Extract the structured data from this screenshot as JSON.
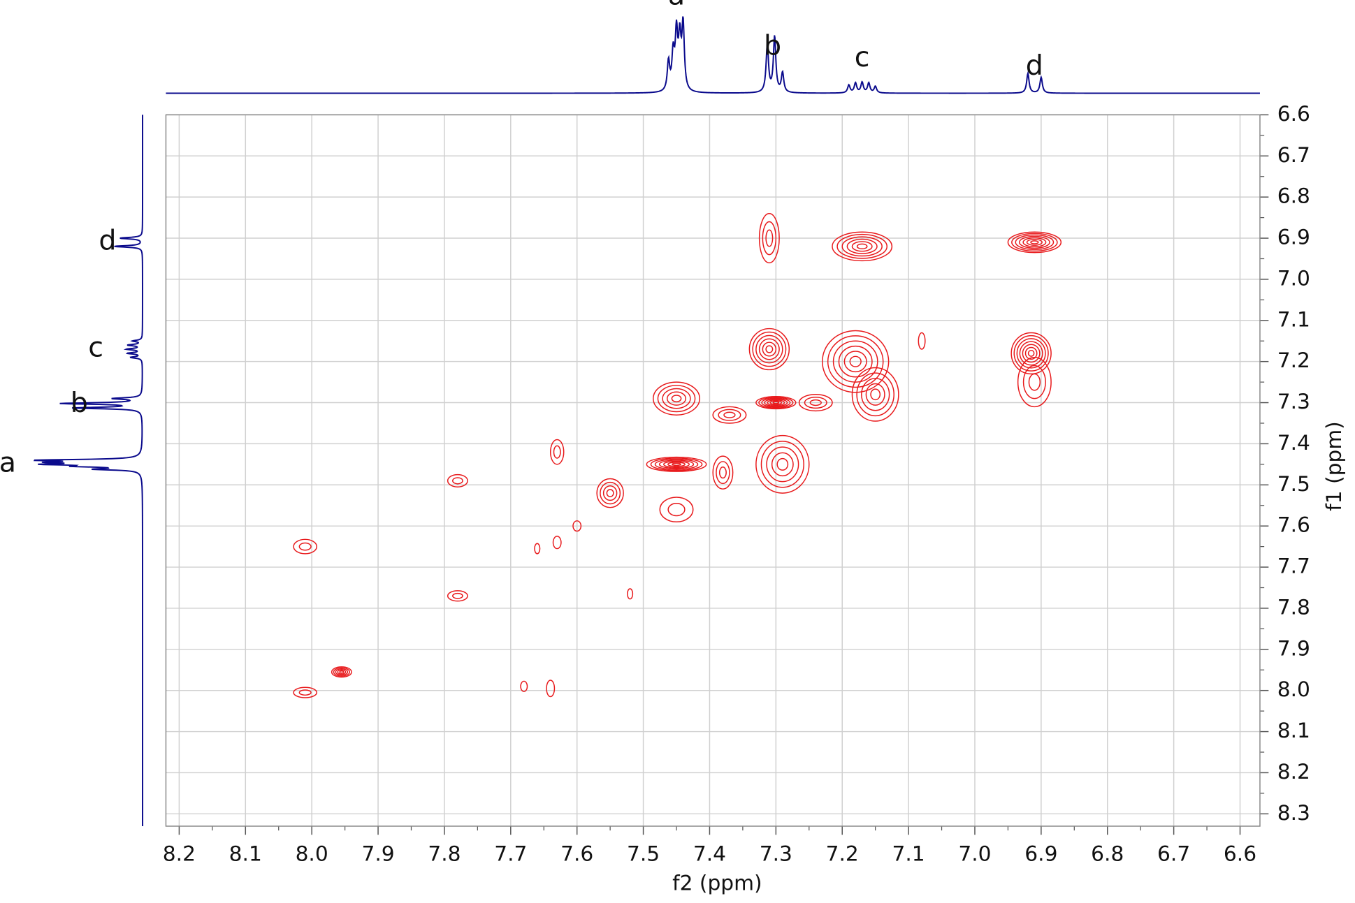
{
  "chart_data": {
    "type": "contour",
    "x_label": "f2 (ppm)",
    "y_label": "f1 (ppm)",
    "xlim": [
      8.22,
      6.57
    ],
    "ylim": [
      6.6,
      8.33
    ],
    "xticks": [
      8.2,
      8.1,
      {
        "value": 8,
        "label": "8.0"
      },
      7.9,
      7.8,
      7.7,
      7.6,
      7.5,
      7.4,
      7.3,
      7.2,
      7.1,
      {
        "value": 7,
        "label": "7.0"
      },
      6.9,
      6.8,
      6.7,
      6.6
    ],
    "yticks": [
      6.6,
      6.7,
      6.8,
      6.9,
      {
        "value": 7,
        "label": "7.0"
      },
      7.1,
      7.2,
      7.3,
      7.4,
      7.5,
      7.6,
      7.7,
      7.8,
      7.9,
      {
        "value": 8,
        "label": "8.0"
      },
      8.1,
      8.2,
      8.3
    ],
    "grid": true,
    "contour_color": "#e8191b",
    "projection_color": "#0a0a8c",
    "projection_labels": [
      {
        "text": "a",
        "ppm": 7.45
      },
      {
        "text": "b",
        "ppm": 7.305
      },
      {
        "text": "c",
        "ppm": 7.17
      },
      {
        "text": "d",
        "ppm": 6.91
      }
    ],
    "projection_peaks": [
      {
        "ppm": 7.462,
        "height": 0.45
      },
      {
        "ppm": 7.455,
        "height": 0.55
      },
      {
        "ppm": 7.45,
        "height": 0.85
      },
      {
        "ppm": 7.445,
        "height": 0.75
      },
      {
        "ppm": 7.44,
        "height": 1.0
      },
      {
        "ppm": 7.313,
        "height": 0.72
      },
      {
        "ppm": 7.302,
        "height": 0.85
      },
      {
        "ppm": 7.29,
        "height": 0.3
      },
      {
        "ppm": 7.19,
        "height": 0.12
      },
      {
        "ppm": 7.18,
        "height": 0.15
      },
      {
        "ppm": 7.17,
        "height": 0.16
      },
      {
        "ppm": 7.16,
        "height": 0.15
      },
      {
        "ppm": 7.15,
        "height": 0.1
      },
      {
        "ppm": 6.92,
        "height": 0.3
      },
      {
        "ppm": 6.9,
        "height": 0.24
      }
    ],
    "peaks": [
      {
        "f2": 7.45,
        "f1": 7.45,
        "w": 0.09,
        "h": 0.035,
        "levels": 7
      },
      {
        "f2": 7.45,
        "f1": 7.29,
        "w": 0.07,
        "h": 0.08,
        "levels": 5
      },
      {
        "f2": 7.3,
        "f1": 7.3,
        "w": 0.06,
        "h": 0.03,
        "levels": 7
      },
      {
        "f2": 7.31,
        "f1": 7.17,
        "w": 0.06,
        "h": 0.1,
        "levels": 6
      },
      {
        "f2": 7.31,
        "f1": 6.9,
        "w": 0.03,
        "h": 0.12,
        "levels": 3
      },
      {
        "f2": 7.29,
        "f1": 7.45,
        "w": 0.08,
        "h": 0.14,
        "levels": 5
      },
      {
        "f2": 7.17,
        "f1": 6.92,
        "w": 0.09,
        "h": 0.07,
        "levels": 6
      },
      {
        "f2": 7.18,
        "f1": 7.2,
        "w": 0.1,
        "h": 0.15,
        "levels": 6
      },
      {
        "f2": 7.15,
        "f1": 7.28,
        "w": 0.07,
        "h": 0.13,
        "levels": 5
      },
      {
        "f2": 6.91,
        "f1": 6.91,
        "w": 0.08,
        "h": 0.05,
        "levels": 7
      },
      {
        "f2": 6.915,
        "f1": 7.18,
        "w": 0.06,
        "h": 0.1,
        "levels": 7
      },
      {
        "f2": 6.91,
        "f1": 7.25,
        "w": 0.05,
        "h": 0.12,
        "levels": 3
      },
      {
        "f2": 7.55,
        "f1": 7.52,
        "w": 0.04,
        "h": 0.07,
        "levels": 4
      },
      {
        "f2": 7.63,
        "f1": 7.42,
        "w": 0.02,
        "h": 0.06,
        "levels": 2
      },
      {
        "f2": 7.78,
        "f1": 7.49,
        "w": 0.03,
        "h": 0.03,
        "levels": 2
      },
      {
        "f2": 7.78,
        "f1": 7.77,
        "w": 0.03,
        "h": 0.025,
        "levels": 2
      },
      {
        "f2": 8.01,
        "f1": 7.65,
        "w": 0.035,
        "h": 0.035,
        "levels": 2
      },
      {
        "f2": 7.955,
        "f1": 7.955,
        "w": 0.03,
        "h": 0.025,
        "levels": 5
      },
      {
        "f2": 8.01,
        "f1": 8.005,
        "w": 0.035,
        "h": 0.025,
        "levels": 2
      },
      {
        "f2": 7.68,
        "f1": 7.99,
        "w": 0.01,
        "h": 0.025,
        "levels": 1
      },
      {
        "f2": 7.64,
        "f1": 7.995,
        "w": 0.012,
        "h": 0.04,
        "levels": 1
      },
      {
        "f2": 7.52,
        "f1": 7.765,
        "w": 0.008,
        "h": 0.025,
        "levels": 1
      },
      {
        "f2": 7.66,
        "f1": 7.655,
        "w": 0.008,
        "h": 0.025,
        "levels": 1
      },
      {
        "f2": 7.63,
        "f1": 7.64,
        "w": 0.012,
        "h": 0.03,
        "levels": 1
      },
      {
        "f2": 7.6,
        "f1": 7.6,
        "w": 0.012,
        "h": 0.025,
        "levels": 1
      },
      {
        "f2": 7.37,
        "f1": 7.33,
        "w": 0.05,
        "h": 0.04,
        "levels": 3
      },
      {
        "f2": 7.24,
        "f1": 7.3,
        "w": 0.05,
        "h": 0.04,
        "levels": 3
      },
      {
        "f2": 7.45,
        "f1": 7.56,
        "w": 0.05,
        "h": 0.06,
        "levels": 2
      },
      {
        "f2": 7.38,
        "f1": 7.47,
        "w": 0.03,
        "h": 0.08,
        "levels": 3
      },
      {
        "f2": 7.08,
        "f1": 7.15,
        "w": 0.01,
        "h": 0.04,
        "levels": 1
      }
    ]
  }
}
